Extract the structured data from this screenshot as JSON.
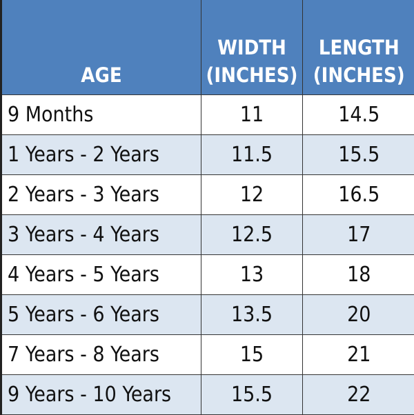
{
  "table": {
    "header": [
      [
        "AGE"
      ],
      [
        "WIDTH",
        "(INCHES)"
      ],
      [
        "LENGTH",
        "(INCHES)"
      ]
    ],
    "rows": [
      [
        "9 Months",
        11,
        14.5
      ],
      [
        "1 Years - 2 Years",
        11.5,
        15.5
      ],
      [
        "2 Years - 3 Years",
        12,
        16.5
      ],
      [
        "3 Years - 4 Years",
        12.5,
        17
      ],
      [
        "4 Years - 5 Years",
        13,
        18
      ],
      [
        "5 Years - 6 Years",
        13.5,
        20
      ],
      [
        "7 Years - 8 Years",
        15,
        21
      ],
      [
        "9 Years - 10 Years",
        15.5,
        22
      ]
    ]
  }
}
